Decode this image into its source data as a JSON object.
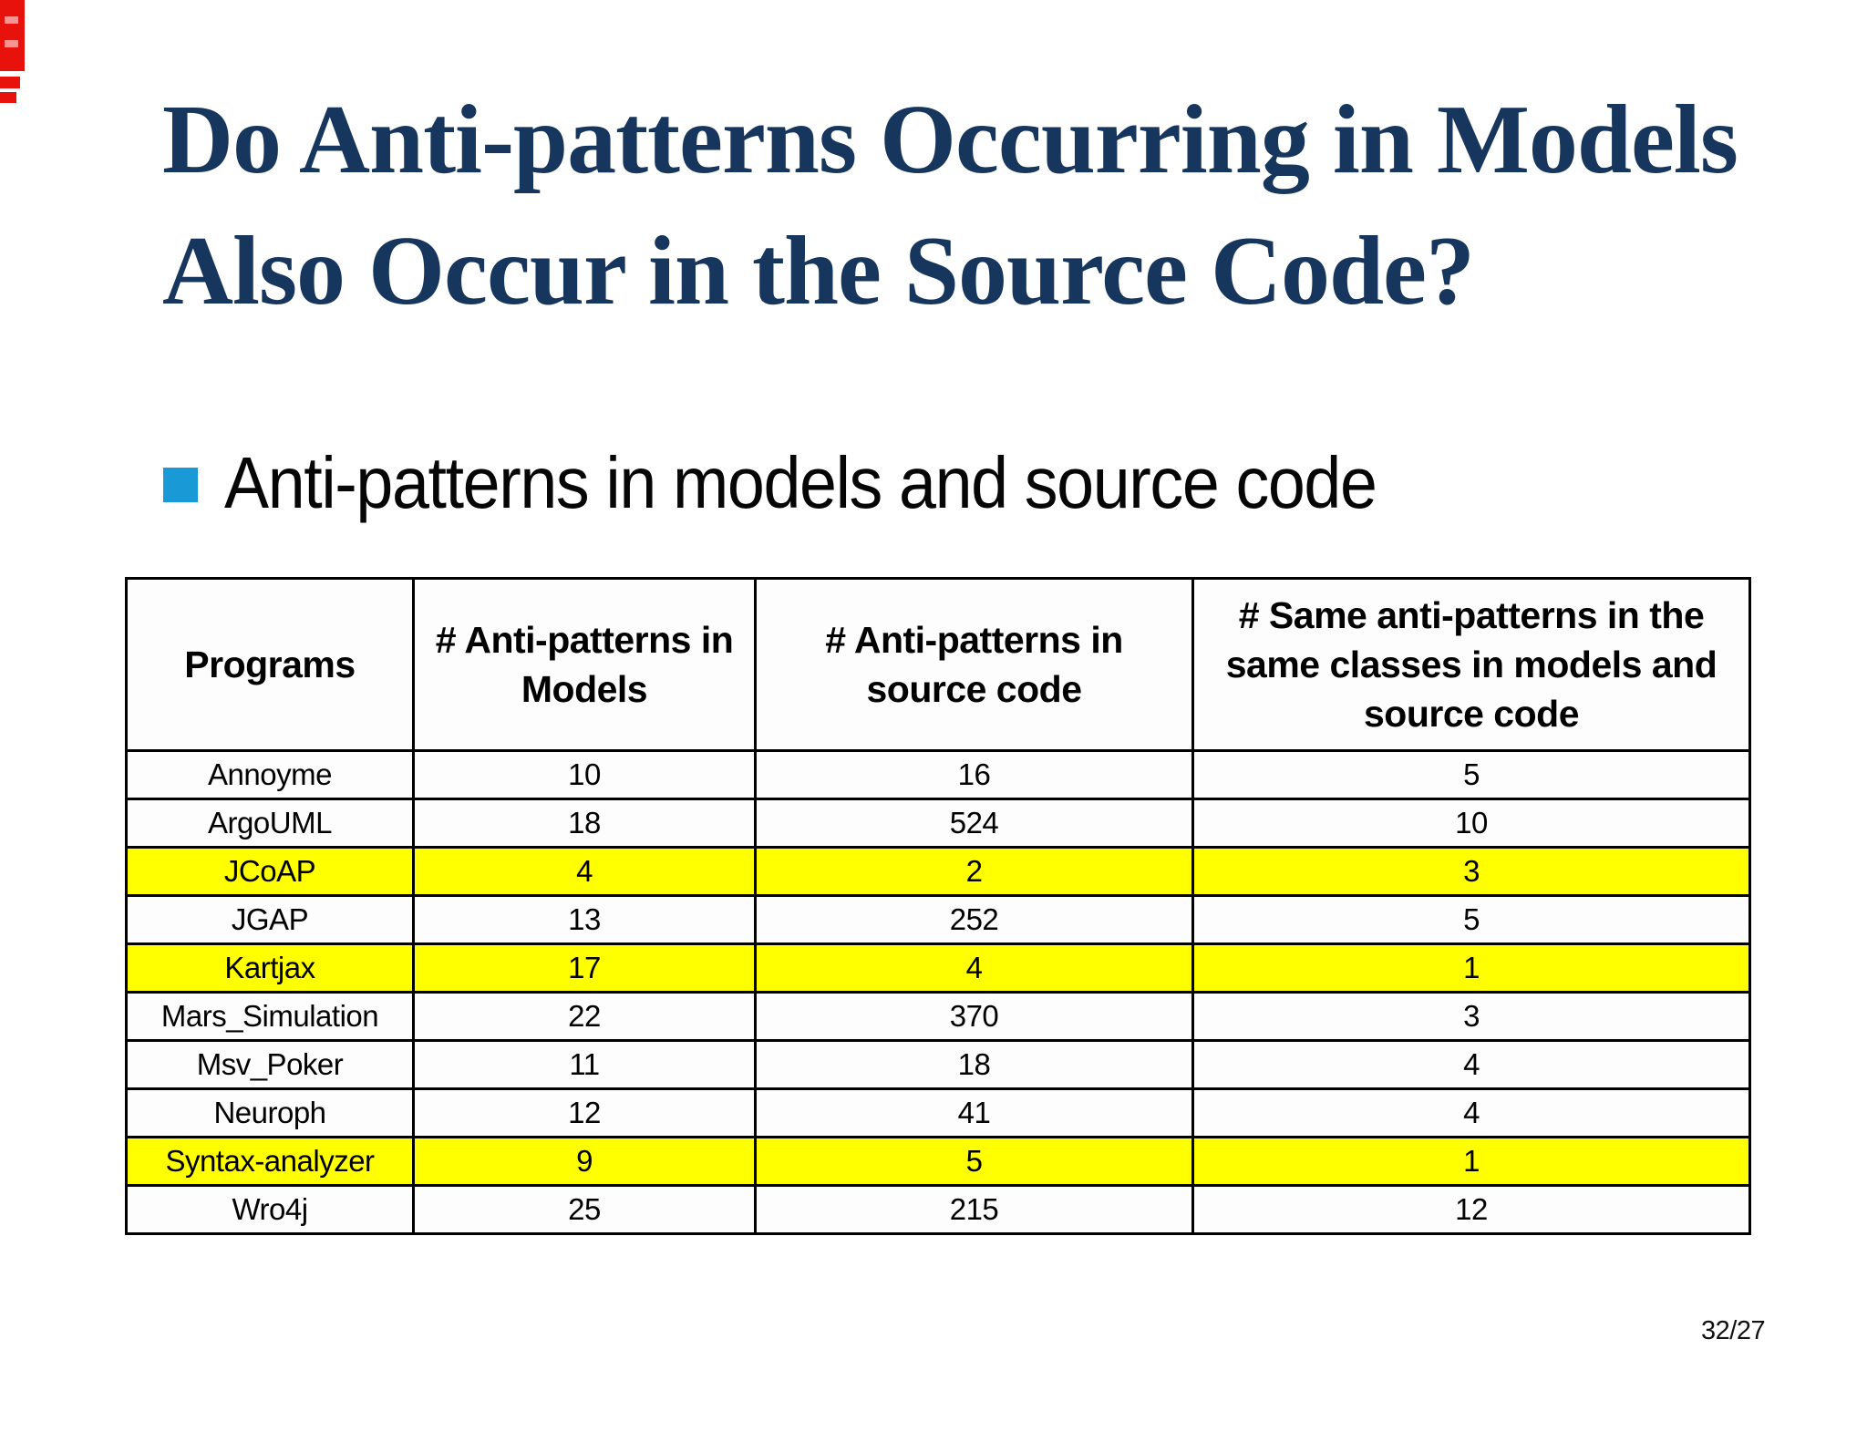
{
  "slide": {
    "title_lines": [
      "Do Anti-patterns Occurring in Models",
      "Also Occur in the Source Code?"
    ],
    "bullet_text": "Anti-patterns in models and source code",
    "page_number": "32/27"
  },
  "colors": {
    "title_text": "#17365d",
    "bullet_square": "#199ad6",
    "row_highlight": "#ffff00",
    "edge_mark_red": "#e8120c",
    "table_border": "#000000"
  },
  "table": {
    "columns": [
      "Programs",
      "# Anti-patterns in Models",
      "# Anti-patterns in source code",
      "# Same anti-patterns in the same classes in models and source code"
    ],
    "rows": [
      {
        "program": "Annoyme",
        "anti_patterns_in_models": "10",
        "anti_patterns_in_source_code": "16",
        "same_anti_patterns": "5",
        "highlighted": false
      },
      {
        "program": "ArgoUML",
        "anti_patterns_in_models": "18",
        "anti_patterns_in_source_code": "524",
        "same_anti_patterns": "10",
        "highlighted": false
      },
      {
        "program": "JCoAP",
        "anti_patterns_in_models": "4",
        "anti_patterns_in_source_code": "2",
        "same_anti_patterns": "3",
        "highlighted": true
      },
      {
        "program": "JGAP",
        "anti_patterns_in_models": "13",
        "anti_patterns_in_source_code": "252",
        "same_anti_patterns": "5",
        "highlighted": false
      },
      {
        "program": "Kartjax",
        "anti_patterns_in_models": "17",
        "anti_patterns_in_source_code": "4",
        "same_anti_patterns": "1",
        "highlighted": true
      },
      {
        "program": "Mars_Simulation",
        "anti_patterns_in_models": "22",
        "anti_patterns_in_source_code": "370",
        "same_anti_patterns": "3",
        "highlighted": false
      },
      {
        "program": "Msv_Poker",
        "anti_patterns_in_models": "11",
        "anti_patterns_in_source_code": "18",
        "same_anti_patterns": "4",
        "highlighted": false
      },
      {
        "program": "Neuroph",
        "anti_patterns_in_models": "12",
        "anti_patterns_in_source_code": "41",
        "same_anti_patterns": "4",
        "highlighted": false
      },
      {
        "program": "Syntax-analyzer",
        "anti_patterns_in_models": "9",
        "anti_patterns_in_source_code": "5",
        "same_anti_patterns": "1",
        "highlighted": true
      },
      {
        "program": "Wro4j",
        "anti_patterns_in_models": "25",
        "anti_patterns_in_source_code": "215",
        "same_anti_patterns": "12",
        "highlighted": false
      }
    ]
  }
}
